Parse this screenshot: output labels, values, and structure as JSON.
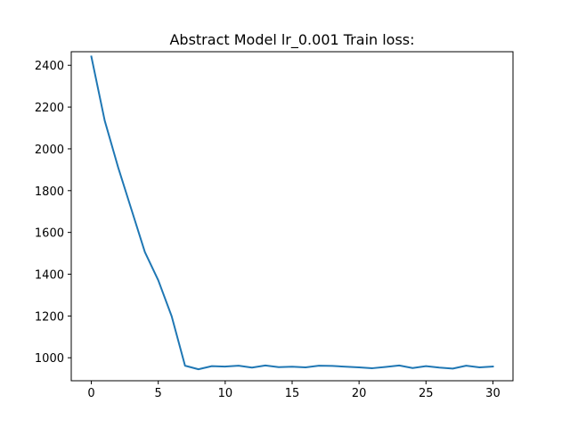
{
  "chart_data": {
    "type": "line",
    "title": "Abstract Model lr_0.001 Train loss:",
    "xlabel": "",
    "ylabel": "",
    "xlim": [
      -1.5,
      31.5
    ],
    "ylim": [
      890,
      2465
    ],
    "xticks": [
      0,
      5,
      10,
      15,
      20,
      25,
      30
    ],
    "yticks": [
      1000,
      1200,
      1400,
      1600,
      1800,
      2000,
      2200,
      2400
    ],
    "grid": false,
    "series": [
      {
        "color": "#1f77b4",
        "x": [
          0,
          1,
          2,
          3,
          4,
          5,
          6,
          7,
          8,
          9,
          10,
          11,
          12,
          13,
          14,
          15,
          16,
          17,
          18,
          19,
          20,
          21,
          22,
          23,
          24,
          25,
          26,
          27,
          28,
          29,
          30
        ],
        "y": [
          2442,
          2135,
          1912,
          1709,
          1506,
          1371,
          1199,
          962,
          945,
          960,
          958,
          962,
          953,
          963,
          955,
          957,
          954,
          962,
          961,
          957,
          954,
          950,
          956,
          963,
          951,
          960,
          953,
          948,
          962,
          954,
          958
        ]
      }
    ]
  }
}
